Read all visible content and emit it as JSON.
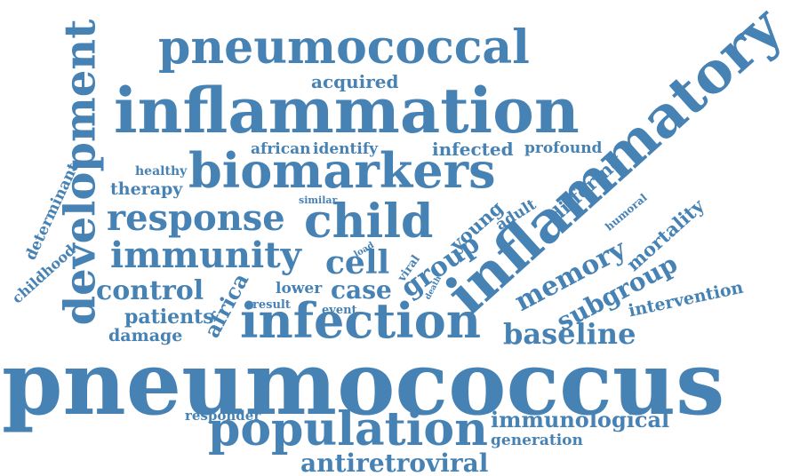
{
  "color": "#4682b4",
  "words": {
    "pneumococcus": "pneumococcus",
    "inflammation": "inflammation",
    "pneumococcal": "pneumococcal",
    "inflammatory": "inflammatory",
    "biomarkers": "biomarkers",
    "development": "development",
    "infection": "infection",
    "population": "population",
    "child": "child",
    "response": "response",
    "immunity": "immunity",
    "cell": "cell",
    "group": "group",
    "memory": "memory",
    "subgroup": "subgroup",
    "baseline": "baseline",
    "antiretroviral": "antiretroviral",
    "immunological": "immunological",
    "case": "case",
    "control": "control",
    "africa": "africa",
    "patients": "patients",
    "damage": "damage",
    "acquired": "acquired",
    "african": "african",
    "identify": "identify",
    "infected": "infected",
    "profound": "profound",
    "differing": "differing",
    "young": "young",
    "adult": "adult",
    "mortality": "mortality",
    "humoral": "humoral",
    "intervention": "intervention",
    "healthy": "healthy",
    "therapy": "therapy",
    "similar": "similar",
    "determinant": "determinant",
    "childhood": "childhood",
    "lower": "lower",
    "result": "result",
    "event": "event",
    "responder": "responder",
    "generation": "generation",
    "viral": "viral",
    "load": "load",
    "death": "death"
  }
}
